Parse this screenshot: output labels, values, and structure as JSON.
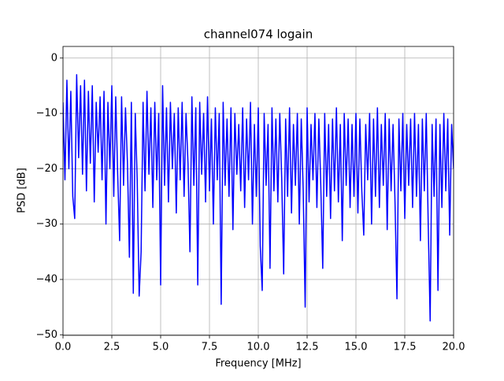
{
  "chart_data": {
    "type": "line",
    "title": "channel074 logain",
    "x_label": "Frequency [MHz]",
    "y_label": "PSD [dB]",
    "xlim": [
      0,
      20
    ],
    "ylim": [
      -50.1,
      2.1
    ],
    "grid": true,
    "xticks": [
      {
        "value": 0,
        "label": "0.0"
      },
      {
        "value": 2.5,
        "label": "2.5"
      },
      {
        "value": 5,
        "label": "5.0"
      },
      {
        "value": 7.5,
        "label": "7.5"
      },
      {
        "value": 10,
        "label": "10.0"
      },
      {
        "value": 12.5,
        "label": "12.5"
      },
      {
        "value": 15,
        "label": "15.0"
      },
      {
        "value": 17.5,
        "label": "17.5"
      },
      {
        "value": 20,
        "label": "20.0"
      }
    ],
    "yticks": [
      0,
      {
        "value": -10,
        "label": "−10"
      },
      {
        "value": -20,
        "label": "−20"
      },
      {
        "value": -30,
        "label": "−30"
      },
      {
        "value": -40,
        "label": "−40"
      },
      {
        "value": -50,
        "label": "−50"
      }
    ],
    "x": [
      0,
      0.1,
      0.2,
      0.3,
      0.4,
      0.5,
      0.6,
      0.7,
      0.8,
      0.9,
      1,
      1.1,
      1.2,
      1.3,
      1.4,
      1.5,
      1.6,
      1.7,
      1.8,
      1.9,
      2,
      2.1,
      2.2,
      2.3,
      2.4,
      2.5,
      2.6,
      2.7,
      2.8,
      2.9,
      3,
      3.1,
      3.2,
      3.3,
      3.4,
      3.5,
      3.6,
      3.7,
      3.8,
      3.9,
      4,
      4.1,
      4.2,
      4.3,
      4.4,
      4.5,
      4.6,
      4.7,
      4.8,
      4.9,
      5,
      5.1,
      5.2,
      5.3,
      5.4,
      5.5,
      5.6,
      5.7,
      5.8,
      5.9,
      6,
      6.1,
      6.2,
      6.3,
      6.4,
      6.5,
      6.6,
      6.7,
      6.8,
      6.9,
      7,
      7.1,
      7.2,
      7.3,
      7.4,
      7.5,
      7.6,
      7.7,
      7.8,
      7.9,
      8,
      8.1,
      8.2,
      8.3,
      8.4,
      8.5,
      8.6,
      8.7,
      8.8,
      8.9,
      9,
      9.1,
      9.2,
      9.3,
      9.4,
      9.5,
      9.6,
      9.7,
      9.8,
      9.9,
      10,
      10.1,
      10.2,
      10.3,
      10.4,
      10.5,
      10.6,
      10.7,
      10.8,
      10.9,
      11,
      11.1,
      11.2,
      11.3,
      11.4,
      11.5,
      11.6,
      11.7,
      11.8,
      11.9,
      12,
      12.1,
      12.2,
      12.3,
      12.4,
      12.5,
      12.6,
      12.7,
      12.8,
      12.9,
      13,
      13.1,
      13.2,
      13.3,
      13.4,
      13.5,
      13.6,
      13.7,
      13.8,
      13.9,
      14,
      14.1,
      14.2,
      14.3,
      14.4,
      14.5,
      14.6,
      14.7,
      14.8,
      14.9,
      15,
      15.1,
      15.2,
      15.3,
      15.4,
      15.5,
      15.6,
      15.7,
      15.8,
      15.9,
      16,
      16.1,
      16.2,
      16.3,
      16.4,
      16.5,
      16.6,
      16.7,
      16.8,
      16.9,
      17,
      17.1,
      17.2,
      17.3,
      17.4,
      17.5,
      17.6,
      17.7,
      17.8,
      17.9,
      18,
      18.1,
      18.2,
      18.3,
      18.4,
      18.5,
      18.6,
      18.7,
      18.8,
      18.9,
      19,
      19.1,
      19.2,
      19.3,
      19.4,
      19.5,
      19.6,
      19.7,
      19.8,
      19.9,
      20
    ],
    "series": [
      {
        "color": "#0000ff",
        "values": [
          -8,
          -22,
          -4,
          -20,
          -6,
          -25,
          -29,
          -3,
          -18,
          -5,
          -21,
          -4,
          -24,
          -6,
          -19,
          -5,
          -26,
          -8,
          -17,
          -7,
          -22,
          -6,
          -30,
          -8,
          -20,
          -5,
          -25,
          -7,
          -21,
          -33,
          -7,
          -23,
          -9,
          -19,
          -36,
          -8,
          -42.5,
          -10,
          -22,
          -43,
          -35,
          -8,
          -24,
          -6,
          -21,
          -9,
          -27,
          -8,
          -22,
          -10,
          -41,
          -5,
          -23,
          -9,
          -26,
          -8,
          -20,
          -10,
          -28,
          -9,
          -22,
          -8,
          -25,
          -10,
          -19,
          -35,
          -7,
          -23,
          -9,
          -41,
          -8,
          -21,
          -10,
          -26,
          -7,
          -24,
          -11,
          -30,
          -9,
          -22,
          -10,
          -44.5,
          -8,
          -23,
          -11,
          -25,
          -9,
          -31,
          -10,
          -21,
          -12,
          -24,
          -9,
          -27,
          -11,
          -22,
          -8,
          -30,
          -12,
          -25,
          -9,
          -34,
          -42,
          -10,
          -23,
          -12,
          -38,
          -9,
          -24,
          -11,
          -26,
          -10,
          -22,
          -39,
          -11,
          -25,
          -9,
          -28,
          -12,
          -23,
          -10,
          -30,
          -11,
          -24,
          -45,
          -9,
          -26,
          -12,
          -22,
          -10,
          -27,
          -11,
          -23,
          -38,
          -10,
          -25,
          -12,
          -29,
          -11,
          -24,
          -9,
          -26,
          -12,
          -33,
          -10,
          -23,
          -11,
          -27,
          -12,
          -25,
          -10,
          -28,
          -11,
          -24,
          -32,
          -12,
          -22,
          -10,
          -30,
          -11,
          -25,
          -9,
          -27,
          -12,
          -23,
          -10,
          -31,
          -11,
          -24,
          -12,
          -26,
          -43.5,
          -11,
          -24,
          -10,
          -29,
          -12,
          -23,
          -11,
          -27,
          -10,
          -25,
          -12,
          -33,
          -11,
          -24,
          -10,
          -30,
          -47.5,
          -12,
          -25,
          -11,
          -42,
          -12,
          -27,
          -10,
          -24,
          -11,
          -32,
          -12,
          -20
        ]
      }
    ]
  }
}
